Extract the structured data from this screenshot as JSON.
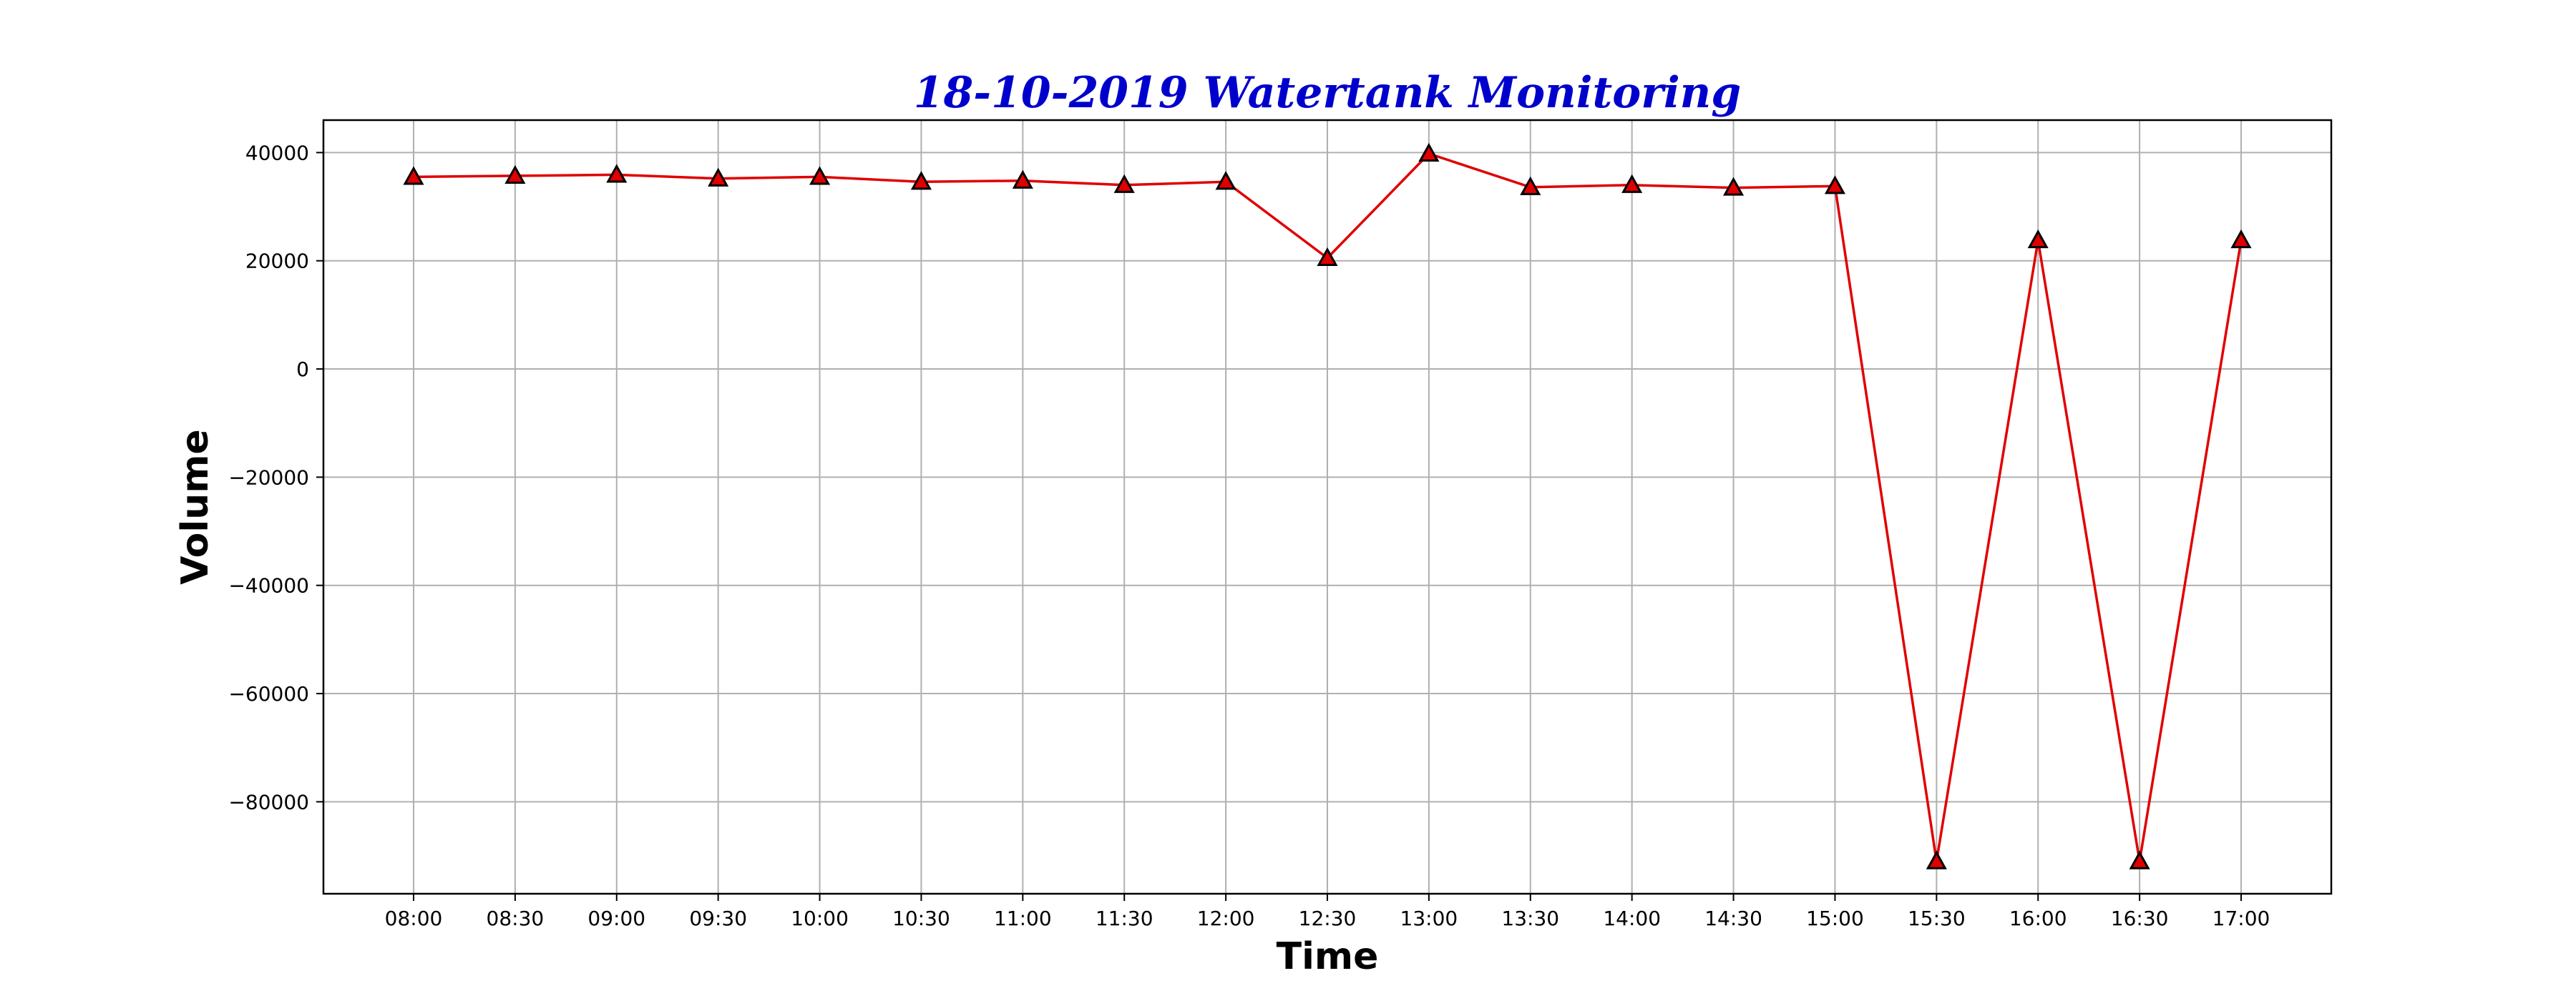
{
  "chart_data": {
    "type": "line",
    "title": "18-10-2019 Watertank Monitoring",
    "xlabel": "Time",
    "ylabel": "Volume",
    "categories": [
      "08:00",
      "08:30",
      "09:00",
      "09:30",
      "10:00",
      "10:30",
      "11:00",
      "11:30",
      "12:00",
      "12:30",
      "13:00",
      "13:30",
      "14:00",
      "14:30",
      "15:00",
      "15:30",
      "16:00",
      "16:30",
      "17:00"
    ],
    "series": [
      {
        "values": [
          35500,
          35700,
          35900,
          35200,
          35500,
          34600,
          34800,
          34000,
          34600,
          20500,
          39800,
          33600,
          34000,
          33500,
          33800,
          -91000,
          23800,
          -91000,
          23800
        ]
      }
    ],
    "ylim": [
      -97000,
      46000
    ],
    "yticks": [
      40000,
      20000,
      0,
      -20000,
      -40000,
      -60000,
      -80000
    ],
    "ytick_labels": [
      "40000",
      "20000",
      "0",
      "−20000",
      "−40000",
      "−60000",
      "−80000"
    ],
    "grid": true,
    "marker": "triangle-up",
    "colors": {
      "line": "#e00000",
      "marker_fill": "#e00000",
      "marker_edge": "#000000",
      "title": "#0000cc",
      "grid": "#b0b0b0"
    }
  }
}
